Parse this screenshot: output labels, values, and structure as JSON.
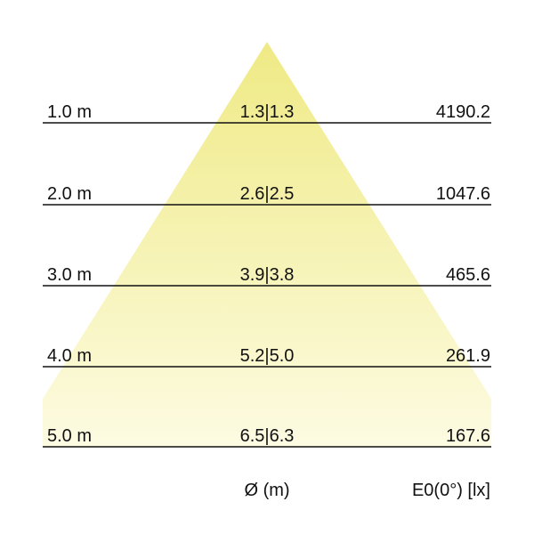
{
  "rows": [
    {
      "distance": "1.0 m",
      "diameter": "1.3|1.3",
      "illuminance": "4190.2"
    },
    {
      "distance": "2.0 m",
      "diameter": "2.6|2.5",
      "illuminance": "1047.6"
    },
    {
      "distance": "3.0 m",
      "diameter": "3.9|3.8",
      "illuminance": "465.6"
    },
    {
      "distance": "4.0 m",
      "diameter": "5.2|5.0",
      "illuminance": "261.9"
    },
    {
      "distance": "5.0 m",
      "diameter": "6.5|6.3",
      "illuminance": "167.6"
    }
  ],
  "footer": {
    "diameter_label": "Ø (m)",
    "illuminance_label": "E0(0°) [lx]"
  },
  "colors": {
    "cone_top": "#efea85",
    "cone_bottom": "#fdfbe2",
    "line": "#111111"
  }
}
